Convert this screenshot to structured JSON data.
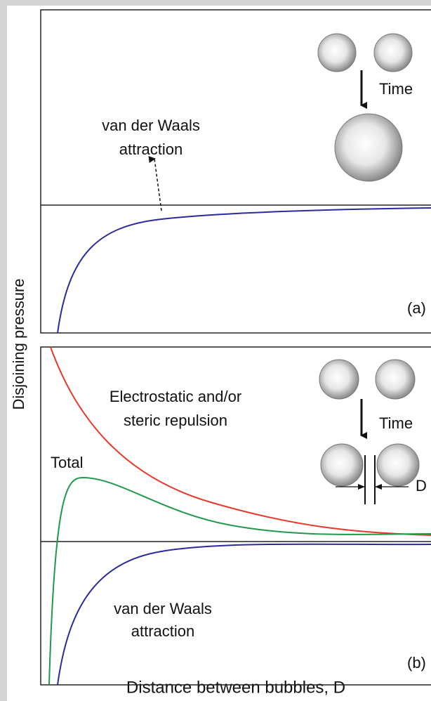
{
  "y_axis_label": "Disjoining pressure",
  "x_axis_label": "Distance between bubbles, D",
  "panel_a": {
    "label": "(a)",
    "time_label": "Time",
    "curve_label": [
      "van der Waals",
      "attraction"
    ]
  },
  "panel_b": {
    "label": "(b)",
    "time_label": "Time",
    "gap_label": "D",
    "repulsion_label": [
      "Electrostatic and/or",
      "steric repulsion"
    ],
    "total_label": "Total",
    "attraction_label": [
      "van der Waals",
      "attraction"
    ]
  }
}
